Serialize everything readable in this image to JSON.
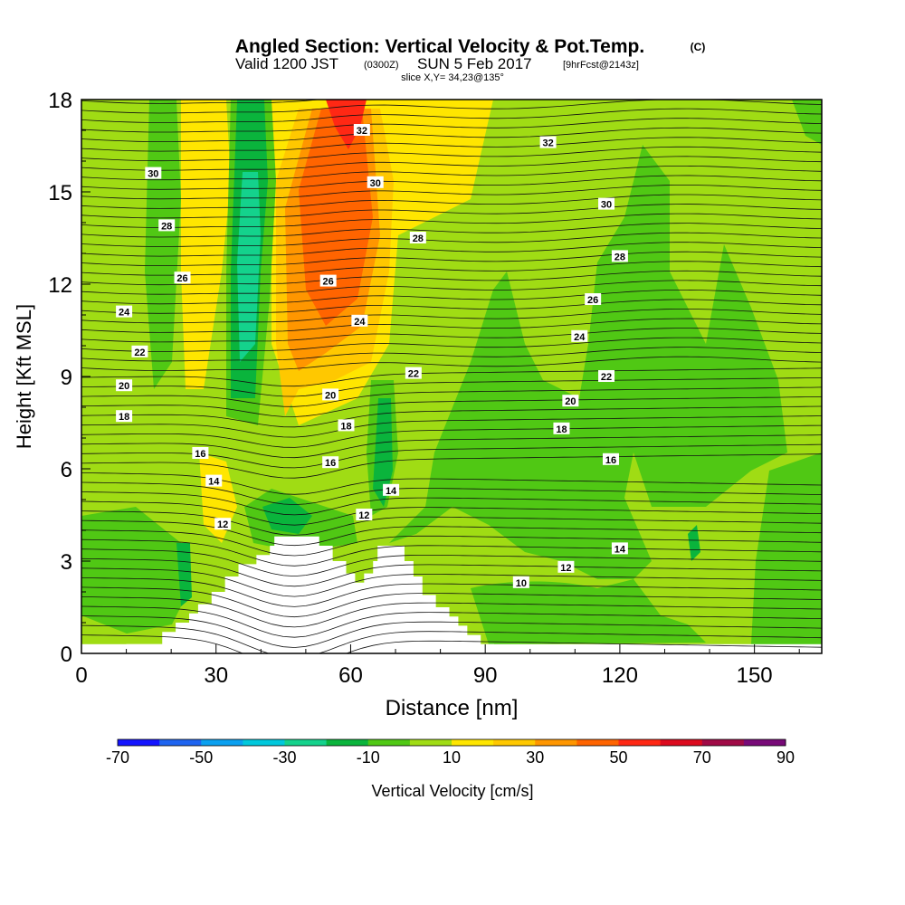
{
  "chart_data": {
    "type": "heatmap",
    "title": "Angled Section: Vertical Velocity & Pot.Temp.",
    "title_units": "(C)",
    "subtitle_valid": "Valid 1200 JST",
    "subtitle_z": "(0300Z)",
    "subtitle_date": "SUN 5 Feb 2017",
    "subtitle_fcst": "[9hrFcst@2143z]",
    "subtitle_slice": "slice X,Y= 34,23@135°",
    "xlabel": "Distance [nm]",
    "ylabel": "Height [Kft MSL]",
    "xlim": [
      0,
      165
    ],
    "ylim": [
      0,
      18
    ],
    "x_ticks": [
      0,
      30,
      60,
      90,
      120,
      150
    ],
    "y_ticks": [
      0,
      3,
      6,
      9,
      12,
      15,
      18
    ],
    "colorbar": {
      "label": "Vertical Velocity [cm/s]",
      "tick_labels": [
        -70,
        -50,
        -30,
        -10,
        10,
        30,
        50,
        70,
        90
      ],
      "levels": [
        -70,
        -60,
        -50,
        -40,
        -30,
        -20,
        -10,
        0,
        10,
        20,
        30,
        40,
        50,
        60,
        70,
        80,
        90
      ],
      "colors": [
        "#1414ff",
        "#1e64f0",
        "#0aa0f0",
        "#00c8dc",
        "#14d28c",
        "#0ab43c",
        "#50c814",
        "#a0dc14",
        "#ffe600",
        "#ffc800",
        "#ff9600",
        "#ff6400",
        "#ff2814",
        "#dc0a1e",
        "#a00a46",
        "#780a78"
      ]
    },
    "theta_labels": [
      {
        "value": 30,
        "x": 16,
        "y": 15.6
      },
      {
        "value": 28,
        "x": 19,
        "y": 13.9
      },
      {
        "value": 26,
        "x": 22.5,
        "y": 12.2
      },
      {
        "value": 24,
        "x": 9.5,
        "y": 11.1
      },
      {
        "value": 22,
        "x": 13,
        "y": 9.8
      },
      {
        "value": 20,
        "x": 9.5,
        "y": 8.7
      },
      {
        "value": 18,
        "x": 9.5,
        "y": 7.7
      },
      {
        "value": 16,
        "x": 26.5,
        "y": 6.5
      },
      {
        "value": 14,
        "x": 29.5,
        "y": 5.6
      },
      {
        "value": 12,
        "x": 31.5,
        "y": 4.2
      },
      {
        "value": 32,
        "x": 62.5,
        "y": 17.0
      },
      {
        "value": 30,
        "x": 65.5,
        "y": 15.3
      },
      {
        "value": 28,
        "x": 75,
        "y": 13.5
      },
      {
        "value": 26,
        "x": 55,
        "y": 12.1
      },
      {
        "value": 24,
        "x": 62,
        "y": 10.8
      },
      {
        "value": 22,
        "x": 74,
        "y": 9.1
      },
      {
        "value": 20,
        "x": 55.5,
        "y": 8.4
      },
      {
        "value": 18,
        "x": 59,
        "y": 7.4
      },
      {
        "value": 16,
        "x": 55.5,
        "y": 6.2
      },
      {
        "value": 14,
        "x": 69,
        "y": 5.3
      },
      {
        "value": 12,
        "x": 63,
        "y": 4.5
      },
      {
        "value": 32,
        "x": 104,
        "y": 16.6
      },
      {
        "value": 30,
        "x": 117,
        "y": 14.6
      },
      {
        "value": 28,
        "x": 120,
        "y": 12.9
      },
      {
        "value": 26,
        "x": 114,
        "y": 11.5
      },
      {
        "value": 24,
        "x": 111,
        "y": 10.3
      },
      {
        "value": 22,
        "x": 117,
        "y": 9.0
      },
      {
        "value": 20,
        "x": 109,
        "y": 8.2
      },
      {
        "value": 18,
        "x": 107,
        "y": 7.3
      },
      {
        "value": 16,
        "x": 118,
        "y": 6.3
      },
      {
        "value": 14,
        "x": 120,
        "y": 3.4
      },
      {
        "value": 12,
        "x": 108,
        "y": 2.8
      },
      {
        "value": 10,
        "x": 98,
        "y": 2.3
      }
    ],
    "terrain": [
      [
        10,
        0.3
      ],
      [
        18,
        0.7
      ],
      [
        21,
        1.0
      ],
      [
        24,
        1.3
      ],
      [
        26,
        1.6
      ],
      [
        29,
        2.0
      ],
      [
        32,
        2.5
      ],
      [
        35,
        2.9
      ],
      [
        39,
        3.2
      ],
      [
        42,
        3.5
      ],
      [
        43,
        3.8
      ],
      [
        46,
        3.8
      ],
      [
        51,
        3.8
      ],
      [
        53,
        3.5
      ],
      [
        56,
        3.0
      ],
      [
        59,
        2.6
      ],
      [
        61,
        2.3
      ],
      [
        63,
        2.6
      ],
      [
        65,
        3.0
      ],
      [
        66,
        3.5
      ],
      [
        70,
        3.5
      ],
      [
        72,
        3.0
      ],
      [
        74,
        2.5
      ],
      [
        76,
        1.9
      ],
      [
        79,
        1.5
      ],
      [
        82,
        1.2
      ],
      [
        84,
        0.9
      ],
      [
        86,
        0.6
      ],
      [
        89,
        0.3
      ],
      [
        92,
        0.3
      ]
    ]
  }
}
